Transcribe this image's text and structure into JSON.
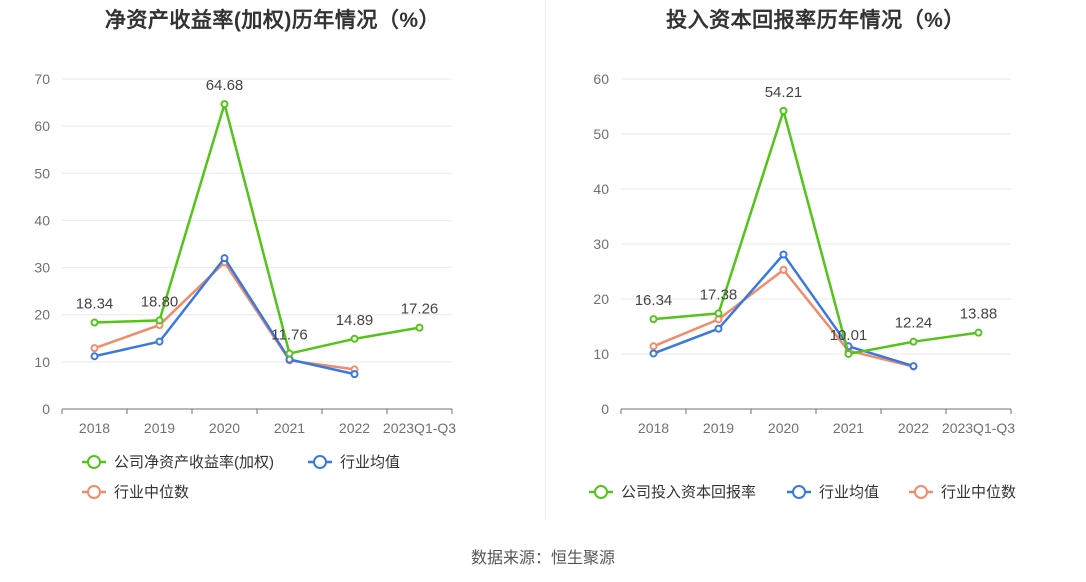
{
  "source": "数据来源：恒生聚源",
  "chart_data": [
    {
      "type": "line",
      "title": "净资产收益率(加权)历年情况（%）",
      "x": [
        "2018",
        "2019",
        "2020",
        "2021",
        "2022",
        "2023Q1-Q3"
      ],
      "ylim": [
        0,
        70
      ],
      "yticks": [
        0,
        10,
        20,
        30,
        40,
        50,
        60,
        70
      ],
      "grid": true,
      "legend_position": "bottom",
      "series": [
        {
          "name": "公司净资产收益率(加权)",
          "color": "#52c41a",
          "labeled": true,
          "values": [
            18.34,
            18.8,
            64.68,
            11.76,
            14.89,
            17.26
          ],
          "labels": [
            "18.34",
            "18.80",
            "64.68",
            "11.76",
            "14.89",
            "17.26"
          ]
        },
        {
          "name": "行业均值",
          "color": "#3a78e0",
          "labeled": false,
          "values": [
            11.2,
            14.3,
            32.0,
            10.5,
            7.4,
            null
          ]
        },
        {
          "name": "行业中位数",
          "color": "#f08c6a",
          "labeled": false,
          "values": [
            12.9,
            17.8,
            31.1,
            10.3,
            8.4,
            null
          ]
        }
      ]
    },
    {
      "type": "line",
      "title": "投入资本回报率历年情况（%）",
      "x": [
        "2018",
        "2019",
        "2020",
        "2021",
        "2022",
        "2023Q1-Q3"
      ],
      "ylim": [
        0,
        60
      ],
      "yticks": [
        0,
        10,
        20,
        30,
        40,
        50,
        60
      ],
      "grid": true,
      "legend_position": "bottom",
      "series": [
        {
          "name": "公司投入资本回报率",
          "color": "#52c41a",
          "labeled": true,
          "values": [
            16.34,
            17.38,
            54.21,
            10.01,
            12.24,
            13.88
          ],
          "labels": [
            "16.34",
            "17.38",
            "54.21",
            "10.01",
            "12.24",
            "13.88"
          ]
        },
        {
          "name": "行业均值",
          "color": "#3a78e0",
          "labeled": false,
          "values": [
            10.1,
            14.6,
            28.1,
            11.4,
            7.8,
            null
          ]
        },
        {
          "name": "行业中位数",
          "color": "#f08c6a",
          "labeled": false,
          "values": [
            11.4,
            16.3,
            25.3,
            10.6,
            7.7,
            null
          ]
        }
      ]
    }
  ]
}
